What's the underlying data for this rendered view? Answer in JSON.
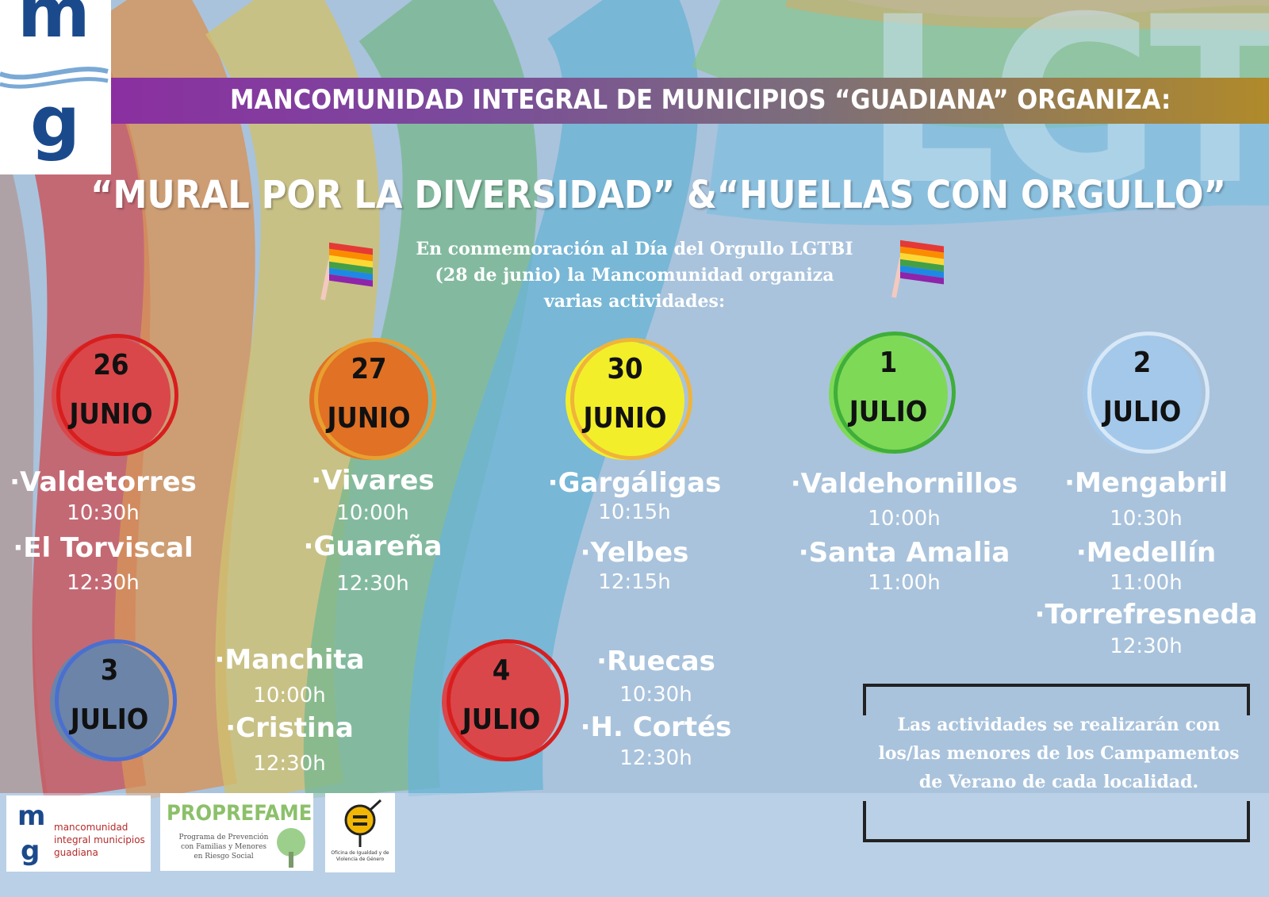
{
  "logo": {
    "top": "m",
    "bottom": "g"
  },
  "background_word": "LGTBI",
  "banner": "MANCOMUNIDAD INTEGRAL DE MUNICIPIOS “GUADIANA” ORGANIZA:",
  "title": "“MURAL POR LA DIVERSIDAD” &“HUELLAS CON ORGULLO”",
  "intro": "En conmemoración al Día del Orgullo LGTBI (28 de junio) la Mancomunidad organiza varias actividades:",
  "days": [
    {
      "day": "26",
      "month": "JUNIO",
      "color": "#d9474a",
      "ring": "#d81e1e",
      "places": [
        {
          "name": "·Valdetorres",
          "time": "10:30h"
        },
        {
          "name": "·El Torviscal",
          "time": "12:30h"
        }
      ]
    },
    {
      "day": "27",
      "month": "JUNIO",
      "color": "#e07125",
      "ring": "#e8a030",
      "places": [
        {
          "name": "·Vivares",
          "time": "10:00h"
        },
        {
          "name": "·Guareña",
          "time": "12:30h"
        }
      ]
    },
    {
      "day": "30",
      "month": "JUNIO",
      "color": "#f2ef2a",
      "ring": "#f0b43a",
      "places": [
        {
          "name": "·Gargáligas",
          "time": "10:15h"
        },
        {
          "name": "·Yelbes",
          "time": "12:15h"
        }
      ]
    },
    {
      "day": "1",
      "month": "JULIO",
      "color": "#7ed957",
      "ring": "#3fae3a",
      "places": [
        {
          "name": "·Valdehornillos",
          "time": "10:00h"
        },
        {
          "name": "·Santa Amalia",
          "time": "11:00h"
        }
      ]
    },
    {
      "day": "2",
      "month": "JULIO",
      "color": "#a4c8ea",
      "ring": "#d8e8f6",
      "places": [
        {
          "name": "·Mengabril",
          "time": "10:30h"
        },
        {
          "name": "·Medellín",
          "time": "11:00h"
        },
        {
          "name": "·Torrefresneda",
          "time": "12:30h"
        }
      ]
    },
    {
      "day": "3",
      "month": "JULIO",
      "color": "#6b84a8",
      "ring": "#4a6fd0",
      "places": [
        {
          "name": "·Manchita",
          "time": "10:00h"
        },
        {
          "name": "·Cristina",
          "time": "12:30h"
        }
      ]
    },
    {
      "day": "4",
      "month": "JULIO",
      "color": "#d9474a",
      "ring": "#d81e1e",
      "places": [
        {
          "name": "·Ruecas",
          "time": "10:30h"
        },
        {
          "name": "·H. Cortés",
          "time": "12:30h"
        }
      ]
    }
  ],
  "note": "Las actividades se realizarán con los/las menores de los Campamentos de Verano de cada localidad.",
  "footer": {
    "mg_name": "mancomunidad integral municipios guadiana",
    "proprefame": "PROPREFAME",
    "proprefame_sub": "Programa de Prevención con Familias y Menores en Riesgo Social",
    "igualdad": "Oficina de Igualdad y de Violencia de Género"
  }
}
